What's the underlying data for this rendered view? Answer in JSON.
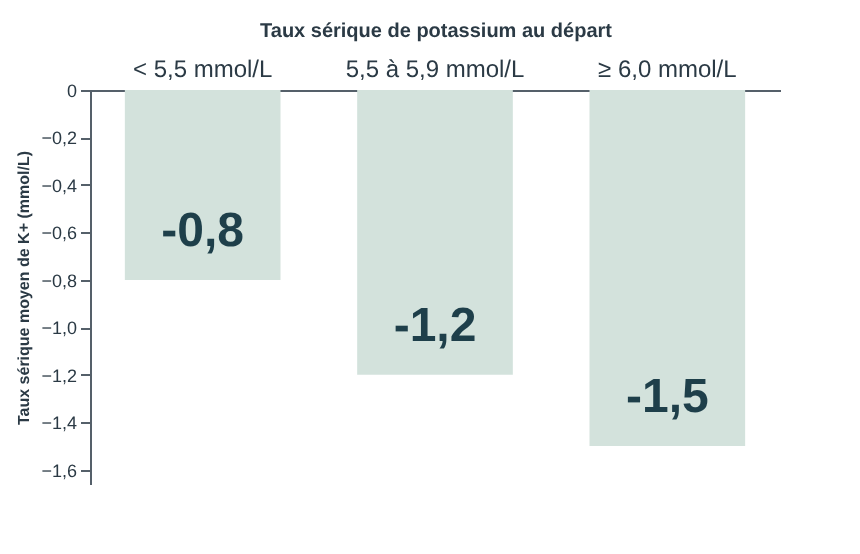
{
  "chart_data": {
    "type": "bar",
    "xlabel": "Taux sérique de potassium au départ",
    "ylabel": "Taux sérique moyen de K+ (mmol/L)",
    "categories": [
      "< 5,5 mmol/L",
      "5,5 à 5,9 mmol/L",
      "≥ 6,0 mmol/L"
    ],
    "values": [
      -0.8,
      -1.2,
      -1.5
    ],
    "color": "#d3e2dc",
    "value_labels": [
      "-0,8",
      "-1,2",
      "-1,5"
    ],
    "ylim": [
      -1.66,
      0
    ],
    "yticks": [
      {
        "value": 0,
        "label": "0"
      },
      {
        "value": -0.2,
        "label": "−0,2"
      },
      {
        "value": -0.4,
        "label": "−0,4"
      },
      {
        "value": -0.6,
        "label": "−0,6"
      },
      {
        "value": -0.8,
        "label": "−0,8"
      },
      {
        "value": -1.0,
        "label": "−1,0"
      },
      {
        "value": -1.2,
        "label": "−1,2"
      },
      {
        "value": -1.4,
        "label": "−1,4"
      },
      {
        "value": -1.6,
        "label": "−1,6"
      }
    ],
    "grid": false
  }
}
